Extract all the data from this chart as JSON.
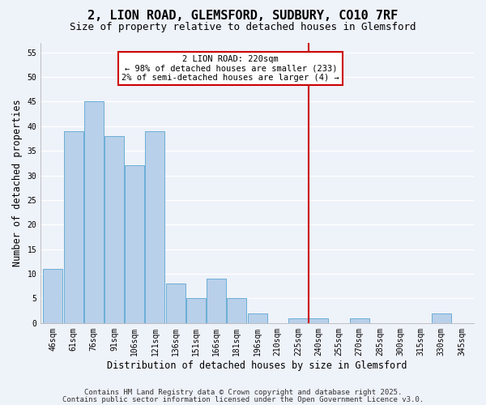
{
  "title": "2, LION ROAD, GLEMSFORD, SUDBURY, CO10 7RF",
  "subtitle": "Size of property relative to detached houses in Glemsford",
  "xlabel": "Distribution of detached houses by size in Glemsford",
  "ylabel": "Number of detached properties",
  "bin_labels": [
    "46sqm",
    "61sqm",
    "76sqm",
    "91sqm",
    "106sqm",
    "121sqm",
    "136sqm",
    "151sqm",
    "166sqm",
    "181sqm",
    "196sqm",
    "210sqm",
    "225sqm",
    "240sqm",
    "255sqm",
    "270sqm",
    "285sqm",
    "300sqm",
    "315sqm",
    "330sqm",
    "345sqm"
  ],
  "bar_heights": [
    11,
    39,
    45,
    38,
    32,
    39,
    8,
    5,
    9,
    5,
    2,
    0,
    1,
    1,
    0,
    1,
    0,
    0,
    0,
    2,
    0
  ],
  "bar_color": "#b8d0ea",
  "bar_edge_color": "#6aaed6",
  "vline_color": "#cc0000",
  "annotation_title": "2 LION ROAD: 220sqm",
  "annotation_line1": "← 98% of detached houses are smaller (233)",
  "annotation_line2": "2% of semi-detached houses are larger (4) →",
  "annotation_box_edge": "#cc0000",
  "ylim": [
    0,
    57
  ],
  "yticks": [
    0,
    5,
    10,
    15,
    20,
    25,
    30,
    35,
    40,
    45,
    50,
    55
  ],
  "footer1": "Contains HM Land Registry data © Crown copyright and database right 2025.",
  "footer2": "Contains public sector information licensed under the Open Government Licence v3.0.",
  "bg_color": "#eef2f9",
  "grid_color": "#ffffff",
  "title_fontsize": 11,
  "subtitle_fontsize": 9,
  "axis_label_fontsize": 8.5,
  "tick_fontsize": 7,
  "footer_fontsize": 6.5,
  "ann_fontsize": 7.5
}
